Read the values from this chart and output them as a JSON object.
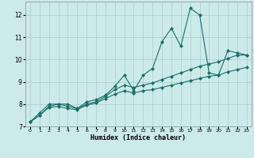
{
  "xlabel": "Humidex (Indice chaleur)",
  "bg_color": "#cceaea",
  "grid_color": "#aacccc",
  "line_color": "#1a6e6a",
  "xlim": [
    -0.5,
    23.5
  ],
  "ylim": [
    7,
    12.6
  ],
  "yticks": [
    7,
    8,
    9,
    10,
    11,
    12
  ],
  "xticks": [
    0,
    1,
    2,
    3,
    4,
    5,
    6,
    7,
    8,
    9,
    10,
    11,
    12,
    13,
    14,
    15,
    16,
    17,
    18,
    19,
    20,
    21,
    22,
    23
  ],
  "x": [
    0,
    1,
    2,
    3,
    4,
    5,
    6,
    7,
    8,
    9,
    10,
    11,
    12,
    13,
    14,
    15,
    16,
    17,
    18,
    19,
    20,
    21,
    22,
    23
  ],
  "line1": [
    7.2,
    7.6,
    8.0,
    8.0,
    8.0,
    7.8,
    8.1,
    8.2,
    8.4,
    8.8,
    9.3,
    8.6,
    9.3,
    9.6,
    10.8,
    11.4,
    10.6,
    12.3,
    12.0,
    9.4,
    9.3,
    10.4,
    10.3,
    10.2
  ],
  "line2": [
    7.2,
    7.5,
    7.9,
    8.0,
    7.9,
    7.8,
    8.0,
    8.1,
    8.35,
    8.65,
    8.85,
    8.75,
    8.85,
    8.95,
    9.1,
    9.25,
    9.4,
    9.55,
    9.7,
    9.8,
    9.9,
    10.05,
    10.2,
    10.2
  ],
  "line3": [
    7.2,
    7.5,
    7.85,
    7.9,
    7.8,
    7.75,
    7.95,
    8.05,
    8.25,
    8.45,
    8.6,
    8.5,
    8.6,
    8.65,
    8.75,
    8.85,
    8.95,
    9.05,
    9.15,
    9.25,
    9.3,
    9.45,
    9.55,
    9.65
  ]
}
